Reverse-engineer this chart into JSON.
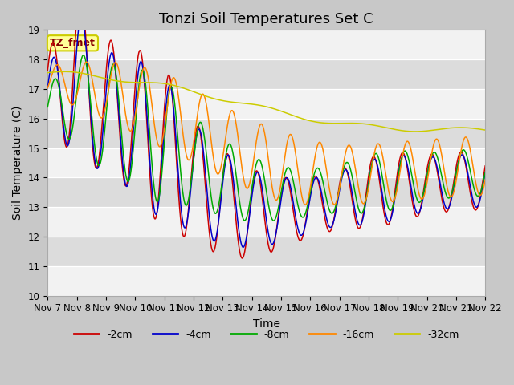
{
  "title": "Tonzi Soil Temperatures Set C",
  "xlabel": "Time",
  "ylabel": "Soil Temperature (C)",
  "ylim": [
    10.0,
    19.0
  ],
  "yticks": [
    10.0,
    11.0,
    12.0,
    13.0,
    14.0,
    15.0,
    16.0,
    17.0,
    18.0,
    19.0
  ],
  "xtick_labels": [
    "Nov 7",
    "Nov 8",
    "Nov 9",
    "Nov 10",
    "Nov 11",
    "Nov 12",
    "Nov 13",
    "Nov 14",
    "Nov 15",
    "Nov 16",
    "Nov 17",
    "Nov 18",
    "Nov 19",
    "Nov 20",
    "Nov 21",
    "Nov 22"
  ],
  "series_colors": {
    "-2cm": "#cc0000",
    "-4cm": "#0000cc",
    "-8cm": "#00aa00",
    "-16cm": "#ff8800",
    "-32cm": "#cccc00"
  },
  "legend_labels": [
    "-2cm",
    "-4cm",
    "-8cm",
    "-16cm",
    "-32cm"
  ],
  "annotation_text": "TZ_fmet",
  "annotation_bg": "#ffff99",
  "annotation_border": "#cccc00",
  "title_fontsize": 13,
  "axis_label_fontsize": 10,
  "tick_fontsize": 8.5
}
